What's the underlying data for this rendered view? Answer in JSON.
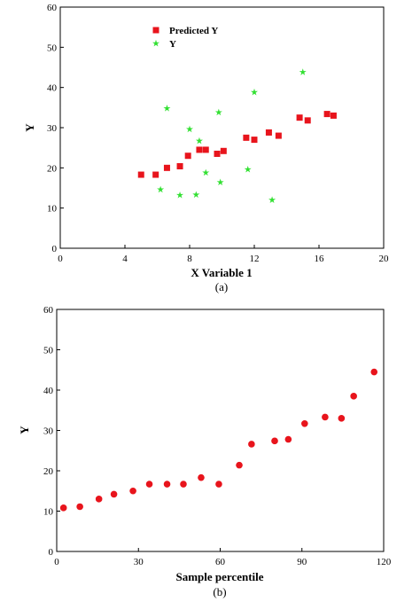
{
  "colors": {
    "predicted": "#e8141c",
    "observed": "#32e032",
    "axis": "#000000"
  },
  "chart_data": [
    {
      "type": "scatter",
      "panel_label": "(a)",
      "xlabel": "X Variable 1",
      "ylabel": "Y",
      "xlim": [
        0,
        20
      ],
      "ylim": [
        0,
        60
      ],
      "xticks": [
        0,
        4,
        8,
        12,
        16,
        20
      ],
      "yticks": [
        0,
        10,
        20,
        30,
        40,
        50,
        60
      ],
      "grid": false,
      "legend_position": "top-left",
      "series": [
        {
          "name": "Predicted Y",
          "marker": "square",
          "color": "#e8141c",
          "points": [
            [
              5.0,
              18.3
            ],
            [
              5.9,
              18.3
            ],
            [
              6.6,
              20.0
            ],
            [
              7.4,
              20.4
            ],
            [
              7.9,
              23.0
            ],
            [
              8.6,
              24.5
            ],
            [
              9.0,
              24.5
            ],
            [
              9.7,
              23.5
            ],
            [
              10.1,
              24.2
            ],
            [
              11.5,
              27.5
            ],
            [
              12.0,
              27.0
            ],
            [
              12.9,
              28.8
            ],
            [
              13.5,
              28.0
            ],
            [
              14.8,
              32.5
            ],
            [
              15.3,
              31.8
            ],
            [
              16.5,
              33.4
            ],
            [
              16.9,
              33.0
            ]
          ]
        },
        {
          "name": "Y",
          "marker": "star",
          "color": "#32e032",
          "points": [
            [
              6.2,
              14.6
            ],
            [
              6.6,
              34.8
            ],
            [
              7.4,
              13.2
            ],
            [
              8.0,
              29.6
            ],
            [
              8.4,
              13.3
            ],
            [
              8.6,
              26.7
            ],
            [
              9.0,
              18.8
            ],
            [
              9.8,
              33.8
            ],
            [
              9.9,
              16.4
            ],
            [
              11.6,
              19.6
            ],
            [
              12.0,
              38.8
            ],
            [
              13.1,
              12.0
            ],
            [
              15.0,
              43.8
            ]
          ]
        }
      ]
    },
    {
      "type": "scatter",
      "panel_label": "(b)",
      "xlabel": "Sample percentile",
      "ylabel": "Y",
      "xlim": [
        0,
        120
      ],
      "ylim": [
        0,
        60
      ],
      "xticks": [
        0,
        30,
        60,
        90,
        120
      ],
      "yticks": [
        0,
        10,
        20,
        30,
        40,
        50,
        60
      ],
      "grid": false,
      "series": [
        {
          "marker": "circle",
          "color": "#e8141c",
          "points": [
            [
              2.5,
              10.8
            ],
            [
              8.5,
              11.1
            ],
            [
              15.5,
              13.0
            ],
            [
              21,
              14.2
            ],
            [
              28,
              15.0
            ],
            [
              34,
              16.7
            ],
            [
              40.5,
              16.7
            ],
            [
              46.5,
              16.7
            ],
            [
              53,
              18.3
            ],
            [
              59.5,
              16.7
            ],
            [
              67,
              21.4
            ],
            [
              71.5,
              26.6
            ],
            [
              80,
              27.4
            ],
            [
              85,
              27.8
            ],
            [
              91,
              31.7
            ],
            [
              98.5,
              33.3
            ],
            [
              104.5,
              33.0
            ],
            [
              109,
              38.5
            ],
            [
              116.5,
              44.5
            ]
          ]
        }
      ]
    }
  ]
}
